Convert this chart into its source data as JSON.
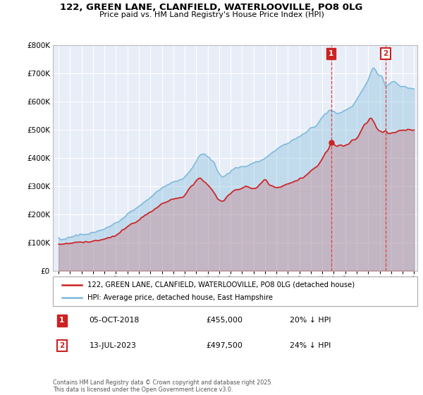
{
  "title1": "122, GREEN LANE, CLANFIELD, WATERLOOVILLE, PO8 0LG",
  "title2": "Price paid vs. HM Land Registry's House Price Index (HPI)",
  "ylim": [
    0,
    800000
  ],
  "xlim_start": 1994.5,
  "xlim_end": 2026.3,
  "marker1_x": 2018.76,
  "marker1_label": "1",
  "marker1_date": "05-OCT-2018",
  "marker1_price": "£455,000",
  "marker1_hpi": "20% ↓ HPI",
  "marker1_y": 455000,
  "marker2_x": 2023.53,
  "marker2_label": "2",
  "marker2_date": "13-JUL-2023",
  "marker2_price": "£497,500",
  "marker2_hpi": "24% ↓ HPI",
  "marker2_y": 497500,
  "legend_line1": "122, GREEN LANE, CLANFIELD, WATERLOOVILLE, PO8 0LG (detached house)",
  "legend_line2": "HPI: Average price, detached house, East Hampshire",
  "footnote": "Contains HM Land Registry data © Crown copyright and database right 2025.\nThis data is licensed under the Open Government Licence v3.0.",
  "hpi_color": "#7ab8d9",
  "price_color": "#cc2222",
  "dashed_color": "#dd4444",
  "bg_color": "#e8eef8",
  "grid_color": "#ffffff",
  "fig_color": "#ffffff"
}
